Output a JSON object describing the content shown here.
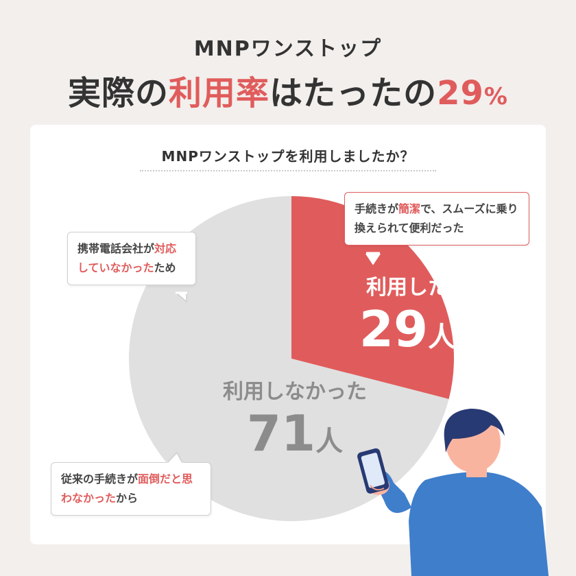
{
  "header": {
    "subtitle": "MNPワンストップ",
    "title_part1": "実際の",
    "title_accent": "利用率",
    "title_part2": "はたったの",
    "title_value": "29",
    "title_pct": "%"
  },
  "question": "MNPワンストップを利用しましたか？",
  "colors": {
    "used": "#e05c5c",
    "not_used": "#e0e0e0",
    "background": "#f2efed",
    "accent": "#e05c5c"
  },
  "chart_data": {
    "type": "pie",
    "title": "MNPワンストップを利用しましたか？",
    "unit": "人",
    "slices": [
      {
        "label": "利用した",
        "value": 29,
        "color": "#e05c5c"
      },
      {
        "label": "利用しなかった",
        "value": 71,
        "color": "#e0e0e0"
      }
    ]
  },
  "comments": [
    {
      "parts": [
        {
          "t": "手続きが"
        },
        {
          "t": "簡潔",
          "hl": true
        },
        {
          "t": "で、スムーズに乗り換えられて便利だった"
        }
      ]
    },
    {
      "parts": [
        {
          "t": "携帯電話会社が"
        },
        {
          "t": "対応していなかった",
          "hl": true
        },
        {
          "t": "ため"
        }
      ]
    },
    {
      "parts": [
        {
          "t": "従来の手続きが"
        },
        {
          "t": "面倒",
          "hl": true
        },
        {
          "t": "だと思わなかった",
          "hl": true
        },
        {
          "t": "から"
        }
      ]
    }
  ],
  "icons": {
    "person": "person-with-phone-icon"
  }
}
